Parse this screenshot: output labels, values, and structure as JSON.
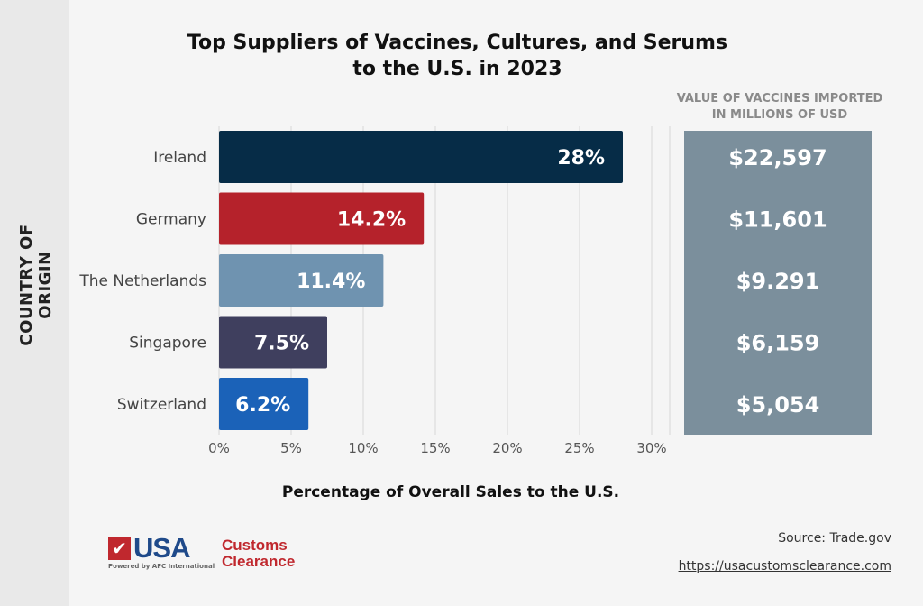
{
  "chart_data": {
    "type": "bar",
    "orientation": "horizontal",
    "title": "Top Suppliers of Vaccines, Cultures, and Serums to the U.S. in 2023",
    "title_lines": [
      "Top Suppliers of Vaccines, Cultures, and Serums",
      "to the U.S. in 2023"
    ],
    "xlabel": "Percentage of Overall Sales to the U.S.",
    "ylabel": "COUNTRY OF ORIGIN",
    "categories": [
      "Ireland",
      "Germany",
      "The Netherlands",
      "Singapore",
      "Switzerland"
    ],
    "values": [
      28,
      14.2,
      11.4,
      7.5,
      6.2
    ],
    "data_labels": [
      "28%",
      "14.2%",
      "11.4%",
      "7.5%",
      "6.2%"
    ],
    "bar_colors": [
      "#062c47",
      "#b5222b",
      "#6f93b0",
      "#3f3f5e",
      "#1b62b8"
    ],
    "xlim": [
      0,
      30
    ],
    "xticks": [
      "0%",
      "5%",
      "10%",
      "15%",
      "20%",
      "25%",
      "30%"
    ],
    "grid": true,
    "side_panel": {
      "title_lines": [
        "VALUE OF VACCINES IMPORTED",
        "IN MILLIONS OF USD"
      ],
      "values": [
        "$22,597",
        "$11,601",
        "$9.291",
        "$6,159",
        "$5,054"
      ],
      "color": "#7b8f9c"
    }
  },
  "footer": {
    "source": "Source: Trade.gov",
    "url": "https://usacustomsclearance.com",
    "logo": {
      "main": "USA",
      "line1": "Customs",
      "line2": "Clearance",
      "tagline": "Powered by AFC International"
    }
  }
}
